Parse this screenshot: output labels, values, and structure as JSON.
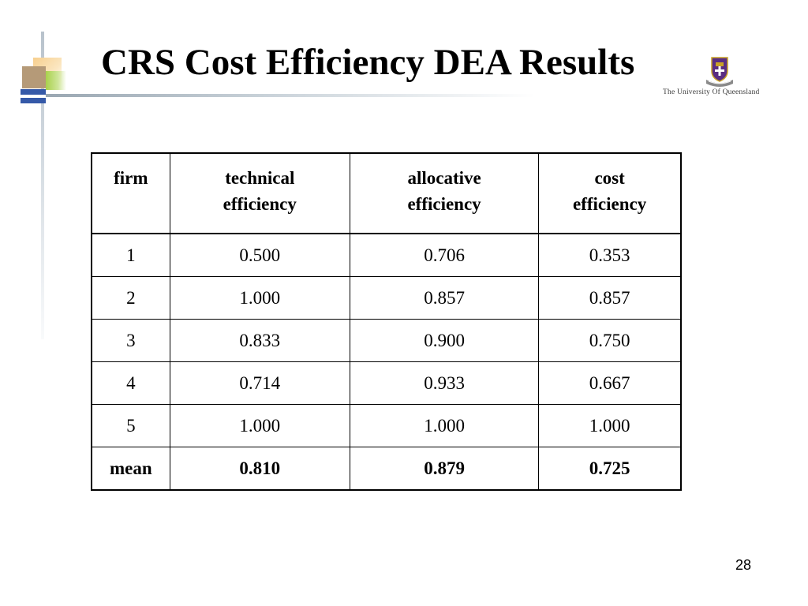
{
  "slide": {
    "title": "CRS Cost Efficiency DEA Results",
    "page_number": "28"
  },
  "logo": {
    "icon": "university-crest-icon",
    "name": "The University Of Queensland",
    "colors": {
      "shield": "#5a2d82",
      "gold": "#c9a227",
      "scroll": "#7a7a7a"
    }
  },
  "decoration": {
    "colors": {
      "orange": "#f7cf8e",
      "tan": "#b59a78",
      "green": "#a9d14b",
      "blue": "#3559a8",
      "rule": "#9aa7b2"
    }
  },
  "table": {
    "headers": [
      "firm",
      "technical\nefficiency",
      "allocative\nefficiency",
      "cost\nefficiency"
    ],
    "rows": [
      [
        "1",
        "0.500",
        "0.706",
        "0.353"
      ],
      [
        "2",
        "1.000",
        "0.857",
        "0.857"
      ],
      [
        "3",
        "0.833",
        "0.900",
        "0.750"
      ],
      [
        "4",
        "0.714",
        "0.933",
        "0.667"
      ],
      [
        "5",
        "1.000",
        "1.000",
        "1.000"
      ]
    ],
    "mean_row": [
      "mean",
      "0.810",
      "0.879",
      "0.725"
    ]
  }
}
